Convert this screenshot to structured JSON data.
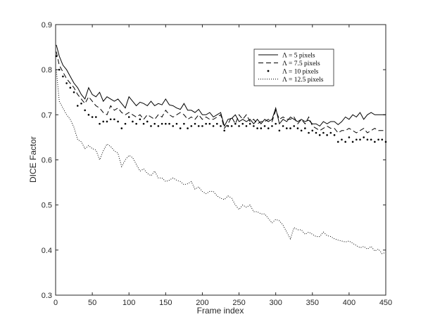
{
  "chart_data": {
    "type": "line",
    "title": "",
    "xlabel": "Frame index",
    "ylabel": "DICE Factor",
    "xlim": [
      0,
      450
    ],
    "ylim": [
      0.3,
      0.9
    ],
    "xticks": [
      0,
      50,
      100,
      150,
      200,
      250,
      300,
      350,
      400,
      450
    ],
    "yticks": [
      0.3,
      0.4,
      0.5,
      0.6,
      0.7,
      0.8,
      0.9
    ],
    "xtick_labels": [
      "0",
      "50",
      "100",
      "150",
      "200",
      "250",
      "300",
      "350",
      "400",
      "450"
    ],
    "ytick_labels": [
      "0.3",
      "0.4",
      "0.5",
      "0.6",
      "0.7",
      "0.8",
      "0.9"
    ],
    "grid": false,
    "legend_position": "top-right",
    "series": [
      {
        "name": "Λ = 5 pixels",
        "style": "solid",
        "color": "#000000",
        "x": [
          1,
          5,
          10,
          15,
          20,
          25,
          30,
          35,
          40,
          45,
          50,
          55,
          60,
          65,
          70,
          75,
          80,
          85,
          90,
          95,
          100,
          105,
          110,
          115,
          120,
          125,
          130,
          135,
          140,
          145,
          150,
          155,
          160,
          165,
          170,
          175,
          180,
          185,
          190,
          195,
          200,
          205,
          210,
          215,
          220,
          225,
          230,
          235,
          240,
          245,
          250,
          255,
          260,
          265,
          270,
          275,
          280,
          285,
          290,
          295,
          300,
          305,
          310,
          315,
          320,
          325,
          330,
          335,
          340,
          345,
          350,
          355,
          360,
          365,
          370,
          375,
          380,
          385,
          390,
          395,
          400,
          405,
          410,
          415,
          420,
          425,
          430,
          435,
          440,
          445,
          450
        ],
        "y": [
          0.855,
          0.83,
          0.81,
          0.8,
          0.785,
          0.77,
          0.76,
          0.745,
          0.735,
          0.76,
          0.745,
          0.74,
          0.75,
          0.73,
          0.74,
          0.735,
          0.73,
          0.735,
          0.725,
          0.715,
          0.74,
          0.73,
          0.72,
          0.728,
          0.725,
          0.72,
          0.73,
          0.72,
          0.725,
          0.722,
          0.735,
          0.722,
          0.72,
          0.715,
          0.712,
          0.725,
          0.71,
          0.71,
          0.705,
          0.712,
          0.7,
          0.7,
          0.705,
          0.695,
          0.7,
          0.705,
          0.675,
          0.69,
          0.692,
          0.7,
          0.685,
          0.69,
          0.685,
          0.69,
          0.68,
          0.69,
          0.68,
          0.69,
          0.685,
          0.69,
          0.715,
          0.68,
          0.69,
          0.685,
          0.695,
          0.69,
          0.685,
          0.69,
          0.685,
          0.688,
          0.68,
          0.68,
          0.675,
          0.685,
          0.68,
          0.685,
          0.685,
          0.678,
          0.685,
          0.695,
          0.69,
          0.7,
          0.695,
          0.705,
          0.69,
          0.7,
          0.705,
          0.7,
          0.7,
          0.7,
          0.7
        ]
      },
      {
        "name": "Λ = 7.5 pixels",
        "style": "dashed",
        "color": "#000000",
        "x": [
          1,
          5,
          10,
          15,
          20,
          25,
          30,
          35,
          40,
          45,
          50,
          55,
          60,
          65,
          70,
          75,
          80,
          85,
          90,
          95,
          100,
          105,
          110,
          115,
          120,
          125,
          130,
          135,
          140,
          145,
          150,
          155,
          160,
          165,
          170,
          175,
          180,
          185,
          190,
          195,
          200,
          205,
          210,
          215,
          220,
          225,
          230,
          235,
          240,
          245,
          250,
          255,
          260,
          265,
          270,
          275,
          280,
          285,
          290,
          295,
          300,
          305,
          310,
          315,
          320,
          325,
          330,
          335,
          340,
          345,
          350,
          355,
          360,
          365,
          370,
          375,
          380,
          385,
          390,
          395,
          400,
          405,
          410,
          415,
          420,
          425,
          430,
          435,
          440,
          445,
          450
        ],
        "y": [
          0.84,
          0.81,
          0.795,
          0.78,
          0.77,
          0.76,
          0.745,
          0.735,
          0.725,
          0.74,
          0.73,
          0.72,
          0.715,
          0.705,
          0.7,
          0.72,
          0.71,
          0.715,
          0.705,
          0.7,
          0.705,
          0.7,
          0.695,
          0.7,
          0.69,
          0.7,
          0.695,
          0.69,
          0.7,
          0.695,
          0.71,
          0.7,
          0.695,
          0.7,
          0.705,
          0.7,
          0.69,
          0.695,
          0.69,
          0.7,
          0.69,
          0.695,
          0.69,
          0.69,
          0.695,
          0.7,
          0.67,
          0.68,
          0.695,
          0.68,
          0.7,
          0.69,
          0.7,
          0.685,
          0.69,
          0.68,
          0.685,
          0.685,
          0.69,
          0.685,
          0.71,
          0.69,
          0.695,
          0.69,
          0.69,
          0.695,
          0.68,
          0.69,
          0.68,
          0.695,
          0.675,
          0.67,
          0.665,
          0.67,
          0.675,
          0.67,
          0.67,
          0.66,
          0.665,
          0.665,
          0.67,
          0.665,
          0.66,
          0.665,
          0.67,
          0.66,
          0.665,
          0.67,
          0.665,
          0.665,
          0.665
        ]
      },
      {
        "name": "Λ = 10 pixels",
        "style": "dotted-markers",
        "color": "#000000",
        "x": [
          1,
          5,
          10,
          15,
          20,
          25,
          30,
          35,
          40,
          45,
          50,
          55,
          60,
          65,
          70,
          75,
          80,
          85,
          90,
          95,
          100,
          105,
          110,
          115,
          120,
          125,
          130,
          135,
          140,
          145,
          150,
          155,
          160,
          165,
          170,
          175,
          180,
          185,
          190,
          195,
          200,
          205,
          210,
          215,
          220,
          225,
          230,
          235,
          240,
          245,
          250,
          255,
          260,
          265,
          270,
          275,
          280,
          285,
          290,
          295,
          300,
          305,
          310,
          315,
          320,
          325,
          330,
          335,
          340,
          345,
          350,
          355,
          360,
          365,
          370,
          375,
          380,
          385,
          390,
          395,
          400,
          405,
          410,
          415,
          420,
          425,
          430,
          435,
          440,
          445,
          450
        ],
        "y": [
          0.83,
          0.8,
          0.785,
          0.77,
          0.76,
          0.75,
          0.72,
          0.725,
          0.71,
          0.7,
          0.695,
          0.695,
          0.68,
          0.685,
          0.685,
          0.69,
          0.69,
          0.685,
          0.67,
          0.68,
          0.695,
          0.685,
          0.68,
          0.69,
          0.68,
          0.685,
          0.675,
          0.68,
          0.675,
          0.68,
          0.68,
          0.68,
          0.675,
          0.68,
          0.67,
          0.68,
          0.67,
          0.675,
          0.68,
          0.675,
          0.675,
          0.68,
          0.68,
          0.675,
          0.68,
          0.675,
          0.665,
          0.675,
          0.675,
          0.68,
          0.675,
          0.68,
          0.675,
          0.68,
          0.675,
          0.67,
          0.67,
          0.675,
          0.67,
          0.675,
          0.68,
          0.665,
          0.675,
          0.67,
          0.67,
          0.675,
          0.67,
          0.665,
          0.67,
          0.66,
          0.665,
          0.66,
          0.655,
          0.66,
          0.655,
          0.66,
          0.655,
          0.64,
          0.645,
          0.64,
          0.65,
          0.64,
          0.645,
          0.645,
          0.65,
          0.645,
          0.645,
          0.64,
          0.645,
          0.645,
          0.64
        ]
      },
      {
        "name": "Λ = 12.5 pixels",
        "style": "dotted",
        "color": "#000000",
        "x": [
          1,
          5,
          10,
          15,
          20,
          25,
          30,
          35,
          40,
          45,
          50,
          55,
          60,
          65,
          70,
          75,
          80,
          85,
          90,
          95,
          100,
          105,
          110,
          115,
          120,
          125,
          130,
          135,
          140,
          145,
          150,
          155,
          160,
          165,
          170,
          175,
          180,
          185,
          190,
          195,
          200,
          205,
          210,
          215,
          220,
          225,
          230,
          235,
          240,
          245,
          250,
          255,
          260,
          265,
          270,
          275,
          280,
          285,
          290,
          295,
          300,
          305,
          310,
          315,
          320,
          325,
          330,
          335,
          340,
          345,
          350,
          355,
          360,
          365,
          370,
          375,
          380,
          385,
          390,
          395,
          400,
          405,
          410,
          415,
          420,
          425,
          430,
          435,
          440,
          445,
          450
        ],
        "y": [
          0.8,
          0.73,
          0.715,
          0.7,
          0.69,
          0.672,
          0.645,
          0.64,
          0.625,
          0.632,
          0.625,
          0.622,
          0.6,
          0.62,
          0.635,
          0.63,
          0.62,
          0.615,
          0.585,
          0.6,
          0.61,
          0.605,
          0.59,
          0.575,
          0.58,
          0.57,
          0.565,
          0.575,
          0.56,
          0.56,
          0.552,
          0.555,
          0.56,
          0.555,
          0.552,
          0.545,
          0.547,
          0.552,
          0.535,
          0.54,
          0.53,
          0.525,
          0.53,
          0.53,
          0.52,
          0.515,
          0.512,
          0.52,
          0.515,
          0.5,
          0.49,
          0.5,
          0.495,
          0.5,
          0.485,
          0.485,
          0.48,
          0.48,
          0.47,
          0.46,
          0.468,
          0.465,
          0.455,
          0.44,
          0.425,
          0.45,
          0.445,
          0.445,
          0.435,
          0.44,
          0.435,
          0.43,
          0.43,
          0.44,
          0.432,
          0.43,
          0.425,
          0.422,
          0.42,
          0.418,
          0.42,
          0.415,
          0.41,
          0.405,
          0.408,
          0.402,
          0.408,
          0.398,
          0.402,
          0.392,
          0.395
        ]
      }
    ]
  }
}
